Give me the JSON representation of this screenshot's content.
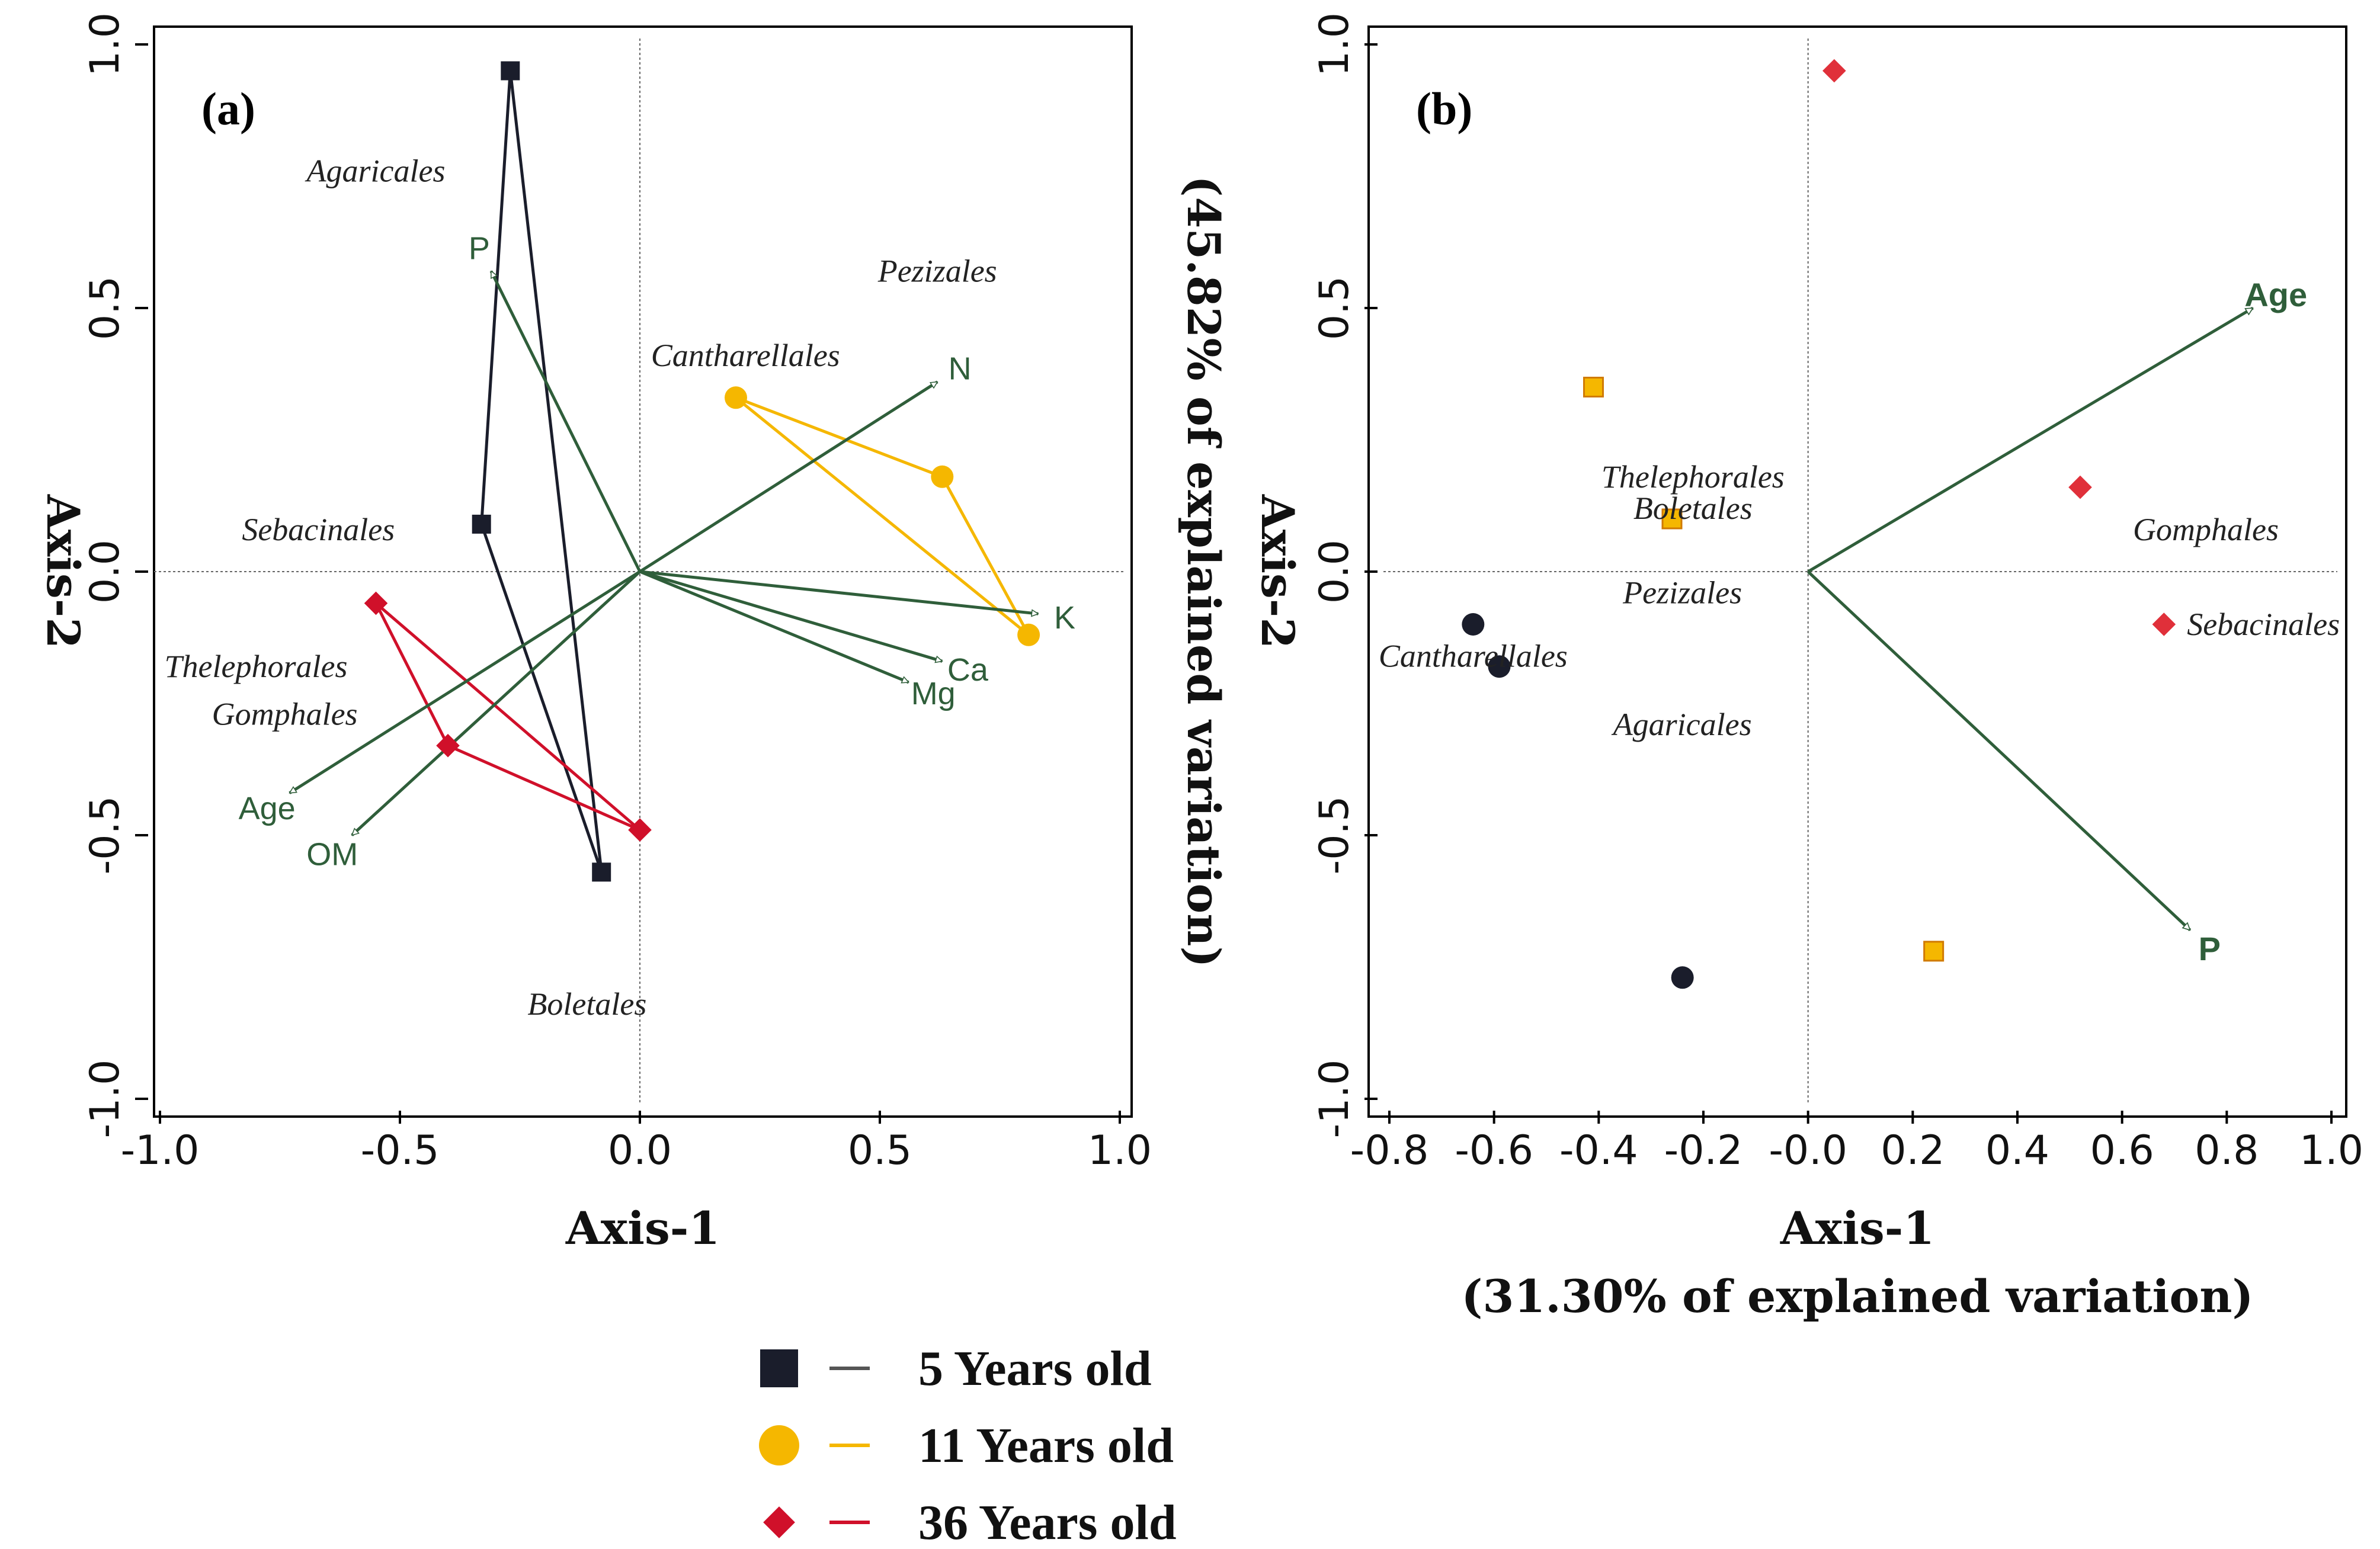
{
  "chart_data": [
    {
      "panel": "(a)",
      "type": "scatter",
      "xlabel": "Axis-1",
      "ylabel": "Axis-2",
      "xlim": [
        -1.0,
        1.0
      ],
      "ylim": [
        -1.0,
        1.0
      ],
      "xticks": [
        "-1.0",
        "-0.5",
        "0.0",
        "0.5",
        "1.0"
      ],
      "yticks": [
        "-1.0",
        "-0.5",
        "0.0",
        "0.5",
        "1.0"
      ],
      "series": [
        {
          "name": "5 Years old",
          "color": "#1a1d2b",
          "marker": "square",
          "points": [
            [
              -0.27,
              0.95
            ],
            [
              -0.33,
              0.09
            ],
            [
              -0.08,
              -0.57
            ]
          ]
        },
        {
          "name": "11 Years old",
          "color": "#f5b700",
          "marker": "circle",
          "points": [
            [
              0.2,
              0.33
            ],
            [
              0.63,
              0.18
            ],
            [
              0.81,
              -0.12
            ]
          ]
        },
        {
          "name": "36 Years old",
          "color": "#d0102a",
          "marker": "diamond",
          "points": [
            [
              -0.55,
              -0.06
            ],
            [
              -0.4,
              -0.33
            ],
            [
              0.0,
              -0.49
            ]
          ]
        }
      ],
      "vectors": [
        {
          "label": "P",
          "x": -0.31,
          "y": 0.57
        },
        {
          "label": "N",
          "x": 0.62,
          "y": 0.36
        },
        {
          "label": "K",
          "x": 0.83,
          "y": -0.08
        },
        {
          "label": "Ca",
          "x": 0.63,
          "y": -0.17
        },
        {
          "label": "Mg",
          "x": 0.56,
          "y": -0.21
        },
        {
          "label": "Age",
          "x": -0.73,
          "y": -0.42
        },
        {
          "label": "OM",
          "x": -0.6,
          "y": -0.5
        }
      ],
      "taxa": [
        {
          "label": "Agaricales",
          "x": -0.55,
          "y": 0.76
        },
        {
          "label": "Pezizales",
          "x": 0.62,
          "y": 0.57
        },
        {
          "label": "Cantharellales",
          "x": 0.22,
          "y": 0.41
        },
        {
          "label": "Sebacinales",
          "x": -0.67,
          "y": 0.08
        },
        {
          "label": "Thelephorales",
          "x": -0.8,
          "y": -0.18
        },
        {
          "label": "Gomphales",
          "x": -0.74,
          "y": -0.27
        },
        {
          "label": "Boletales",
          "x": -0.11,
          "y": -0.82
        }
      ]
    },
    {
      "panel": "(b)",
      "type": "scatter",
      "xlabel": "Axis-1",
      "xlabel2": "(31.30% of explained variation)",
      "ylabel": "Axis-2",
      "ylabel2": "(45.82% of explained variation)",
      "xlim": [
        -0.8,
        1.0
      ],
      "ylim": [
        -1.0,
        1.0
      ],
      "xticks": [
        "-0.8",
        "-0.6",
        "-0.4",
        "-0.2",
        "-0.0",
        "0.2",
        "0.4",
        "0.6",
        "0.8",
        "1.0"
      ],
      "yticks": [
        "-1.0",
        "-0.5",
        "0.0",
        "0.5",
        "1.0"
      ],
      "series": [
        {
          "name": "5 Years old",
          "color": "#1a1d2b",
          "marker": "circle",
          "points": [
            [
              -0.64,
              -0.1
            ],
            [
              -0.59,
              -0.18
            ],
            [
              -0.24,
              -0.77
            ]
          ]
        },
        {
          "name": "11 Years old",
          "color": "#f5b700",
          "marker": "square",
          "points": [
            [
              -0.41,
              0.35
            ],
            [
              -0.26,
              0.1
            ],
            [
              0.24,
              -0.72
            ]
          ]
        },
        {
          "name": "36 Years old",
          "color": "#e0303a",
          "marker": "diamond",
          "points": [
            [
              0.05,
              0.95
            ],
            [
              0.52,
              0.16
            ],
            [
              0.68,
              -0.1
            ]
          ]
        }
      ],
      "vectors": [
        {
          "label": "Age",
          "x": 0.85,
          "y": 0.5
        },
        {
          "label": "P",
          "x": 0.73,
          "y": -0.68
        }
      ],
      "taxa": [
        {
          "label": "Thelephorales",
          "x": -0.22,
          "y": 0.18
        },
        {
          "label": "Boletales",
          "x": -0.22,
          "y": 0.12
        },
        {
          "label": "Gomphales",
          "x": 0.76,
          "y": 0.08
        },
        {
          "label": "Pezizales",
          "x": -0.24,
          "y": -0.04
        },
        {
          "label": "Sebacinales",
          "x": 0.87,
          "y": -0.1
        },
        {
          "label": "Cantharellales",
          "x": -0.64,
          "y": -0.16
        },
        {
          "label": "Agaricales",
          "x": -0.24,
          "y": -0.29
        }
      ]
    }
  ],
  "legend": {
    "items": [
      {
        "label": "5 Years old",
        "marker": "square",
        "color": "#1a1d2b"
      },
      {
        "label": "11 Years old",
        "marker": "circle",
        "color": "#f5b700"
      },
      {
        "label": "36 Years old",
        "marker": "diamond",
        "color": "#d0102a"
      }
    ]
  }
}
